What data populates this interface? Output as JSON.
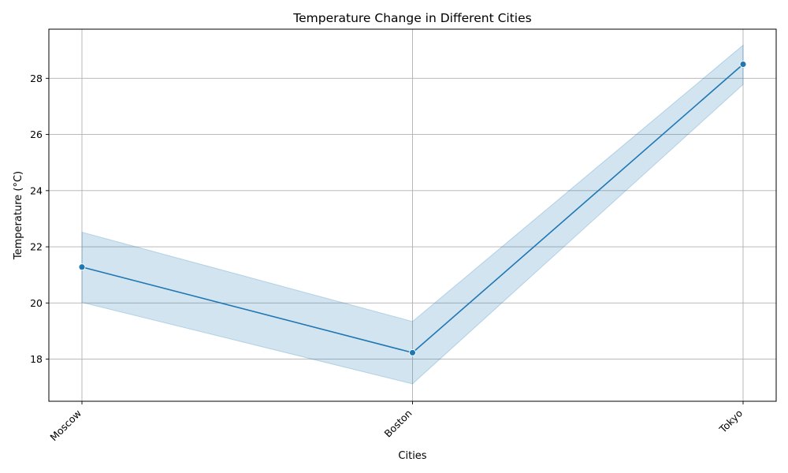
{
  "chart_data": {
    "type": "line",
    "title": "Temperature Change in Different Cities",
    "xlabel": "Cities",
    "ylabel": "Temperature (°C)",
    "categories": [
      "Moscow",
      "Boston",
      "Tokyo"
    ],
    "series": [
      {
        "values": [
          21.28,
          18.23,
          28.5
        ],
        "ci_lower": [
          20.02,
          17.12,
          27.78
        ],
        "ci_upper": [
          22.52,
          19.34,
          29.18
        ]
      }
    ],
    "ylim": [
      16.5,
      29.75
    ],
    "yticks": [
      18,
      20,
      22,
      24,
      26,
      28
    ],
    "grid": true,
    "line_color": "#1f77b4",
    "band_color": "#1f77b4"
  }
}
